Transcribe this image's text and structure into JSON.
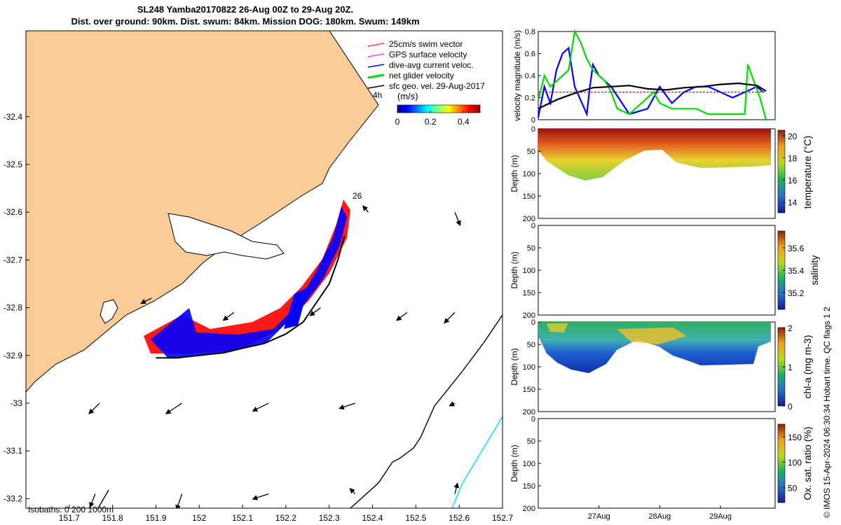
{
  "title_line1": "SL248 Yamba20170822 26-Aug 00Z to 29-Aug 20Z.",
  "title_line2": "Dist. over ground: 90km. Dist. swum: 84km. Mission DOG: 180km. Swum: 149km",
  "credit": "© IMOS 15-Apr-2024 06:30:34 Hobart time. QC flags 1  2",
  "chart_data": [
    {
      "type": "scatter",
      "panel": "map",
      "x_ticks": [
        "151.7",
        "151.8",
        "151.9",
        "152",
        "152.1",
        "152.2",
        "152.3",
        "152.4",
        "152.5",
        "152.6",
        "152.7"
      ],
      "y_ticks": [
        "-32.4",
        "-32.5",
        "-32.6",
        "-32.7",
        "-32.8",
        "-32.9",
        "-33",
        "-33.1",
        "-33.2"
      ],
      "xlim": [
        151.6,
        152.7
      ],
      "ylim": [
        -33.22,
        -32.22
      ],
      "legend": [
        {
          "label": "25cm/s swim vector",
          "color": "#ff0000"
        },
        {
          "label": "GPS surface velocity",
          "color": "#ff00ff"
        },
        {
          "label": "dive-avg current veloc.",
          "color": "#0000ff"
        },
        {
          "label": "net glider velocity",
          "color": "#00dd00"
        },
        {
          "label": "sfc geo. vel. 29-Aug-2017",
          "color": "#000000"
        }
      ],
      "time_label": "4h",
      "colorbar": {
        "label": "(m/s)",
        "ticks": [
          "0",
          "0.2",
          "0.4"
        ],
        "range": [
          0,
          0.5
        ]
      },
      "day_label": "26",
      "isobaths_text": "Isobaths: 0   200  1000m",
      "track": [
        [
          151.9,
          -32.905
        ],
        [
          151.95,
          -32.905
        ],
        [
          152.0,
          -32.9
        ],
        [
          152.05,
          -32.895
        ],
        [
          152.1,
          -32.885
        ],
        [
          152.15,
          -32.875
        ],
        [
          152.2,
          -32.855
        ],
        [
          152.24,
          -32.83
        ],
        [
          152.27,
          -32.79
        ],
        [
          152.3,
          -32.75
        ],
        [
          152.32,
          -32.7
        ],
        [
          152.335,
          -32.65
        ]
      ],
      "current_arrows": [
        [
          152.39,
          -32.6,
          -0.1,
          -0.12
        ],
        [
          152.59,
          -32.6,
          0.1,
          0.25
        ],
        [
          151.89,
          -32.78,
          -0.2,
          0.1
        ],
        [
          152.08,
          -32.81,
          -0.2,
          0.15
        ],
        [
          152.28,
          -32.8,
          -0.2,
          0.15
        ],
        [
          152.48,
          -32.81,
          -0.2,
          0.15
        ],
        [
          152.59,
          -32.81,
          -0.2,
          0.2
        ],
        [
          151.77,
          -33.0,
          -0.2,
          0.2
        ],
        [
          151.96,
          -33.0,
          -0.3,
          0.2
        ],
        [
          152.16,
          -33.0,
          -0.3,
          0.15
        ],
        [
          152.36,
          -33.0,
          -0.3,
          0.1
        ],
        [
          152.59,
          -33.0,
          -0.1,
          0.05
        ],
        [
          151.76,
          -33.19,
          -0.1,
          0.25
        ],
        [
          151.96,
          -33.19,
          -0.1,
          0.3
        ],
        [
          152.16,
          -33.19,
          -0.3,
          0.1
        ],
        [
          152.36,
          -33.19,
          -0.1,
          -0.1
        ],
        [
          152.59,
          -33.19,
          0.05,
          -0.2
        ]
      ]
    },
    {
      "type": "line",
      "panel": "velocity",
      "ylabel": "velocity magnitude (m/s)",
      "ylim": [
        0,
        0.8
      ],
      "y_ticks": [
        "0",
        "0.2",
        "0.4",
        "0.6",
        "0.8"
      ],
      "series": [
        {
          "color": "#0000ff",
          "x": [
            26.0,
            26.1,
            26.2,
            26.3,
            26.4,
            26.5,
            26.6,
            26.8,
            26.85,
            26.9,
            27.0,
            27.2,
            27.5,
            27.8,
            27.9,
            28.0,
            28.2,
            28.4,
            28.6,
            28.8,
            29.0,
            29.2,
            29.4,
            29.6,
            29.7
          ],
          "values": [
            0.02,
            0.3,
            0.15,
            0.45,
            0.6,
            0.65,
            0.3,
            0.05,
            0.3,
            0.5,
            0.4,
            0.3,
            0.05,
            0.1,
            0.2,
            0.3,
            0.15,
            0.25,
            0.3,
            0.3,
            0.25,
            0.2,
            0.25,
            0.3,
            0.25
          ]
        },
        {
          "color": "#00dd00",
          "x": [
            26.0,
            26.1,
            26.2,
            26.3,
            26.4,
            26.5,
            26.6,
            26.7,
            26.8,
            26.9,
            27.0,
            27.1,
            27.2,
            27.3,
            27.5,
            27.7,
            27.9,
            28.0,
            28.2,
            28.4,
            28.6,
            28.8,
            29.0,
            29.2,
            29.4,
            29.45,
            29.55,
            29.65,
            29.75
          ],
          "values": [
            0.18,
            0.4,
            0.3,
            0.35,
            0.4,
            0.45,
            0.8,
            0.7,
            0.55,
            0.45,
            0.4,
            0.35,
            0.25,
            0.1,
            0.05,
            0.15,
            0.25,
            0.15,
            0.1,
            0.1,
            0.1,
            0.05,
            0.05,
            0.05,
            0.05,
            0.5,
            0.35,
            0.2,
            0.0
          ]
        },
        {
          "color": "#000000",
          "x": [
            26.0,
            26.3,
            26.6,
            26.9,
            27.2,
            27.5,
            27.8,
            28.1,
            28.4,
            28.7,
            29.0,
            29.3,
            29.6,
            29.75
          ],
          "values": [
            0.1,
            0.18,
            0.24,
            0.29,
            0.3,
            0.31,
            0.28,
            0.27,
            0.29,
            0.3,
            0.32,
            0.33,
            0.31,
            0.26
          ]
        },
        {
          "color": "#ff0000",
          "x": [
            26.0,
            29.75
          ],
          "values": [
            0.25,
            0.25
          ]
        }
      ]
    },
    {
      "type": "heatmap",
      "panel": "temperature",
      "ylabel": "Depth (m)",
      "ylim": [
        0,
        200
      ],
      "y_ticks": [
        "0",
        "50",
        "100",
        "150",
        "200"
      ],
      "colorbar_label": "temperature (°C)",
      "colorbar_ticks": [
        "20",
        "18",
        "16",
        "14"
      ],
      "colorbar_range": [
        13,
        20.5
      ]
    },
    {
      "type": "heatmap",
      "panel": "salinity",
      "ylabel": "Depth (m)",
      "ylim": [
        0,
        200
      ],
      "y_ticks": [
        "0",
        "50",
        "100",
        "150",
        "200"
      ],
      "colorbar_label": "salinity",
      "colorbar_ticks": [
        "35.6",
        "35.4",
        "35.2"
      ],
      "colorbar_range": [
        35.05,
        35.75
      ]
    },
    {
      "type": "heatmap",
      "panel": "chl",
      "ylabel": "Depth (m)",
      "ylim": [
        0,
        200
      ],
      "y_ticks": [
        "0",
        "50",
        "100",
        "150",
        "200"
      ],
      "colorbar_label": "chl-a (mg m-3)",
      "colorbar_ticks": [
        "2",
        "1",
        "0"
      ],
      "colorbar_range": [
        0,
        2
      ]
    },
    {
      "type": "heatmap",
      "panel": "oxygen",
      "ylabel": "Depth (m)",
      "ylim": [
        0,
        200
      ],
      "y_ticks": [
        "0",
        "50",
        "100",
        "150",
        "200"
      ],
      "colorbar_label": "Ox. sat. ratio (%)",
      "colorbar_ticks": [
        "150",
        "100",
        "50"
      ],
      "colorbar_range": [
        20,
        175
      ],
      "x_ticks": [
        "27Aug",
        "28Aug",
        "29Aug"
      ]
    }
  ]
}
